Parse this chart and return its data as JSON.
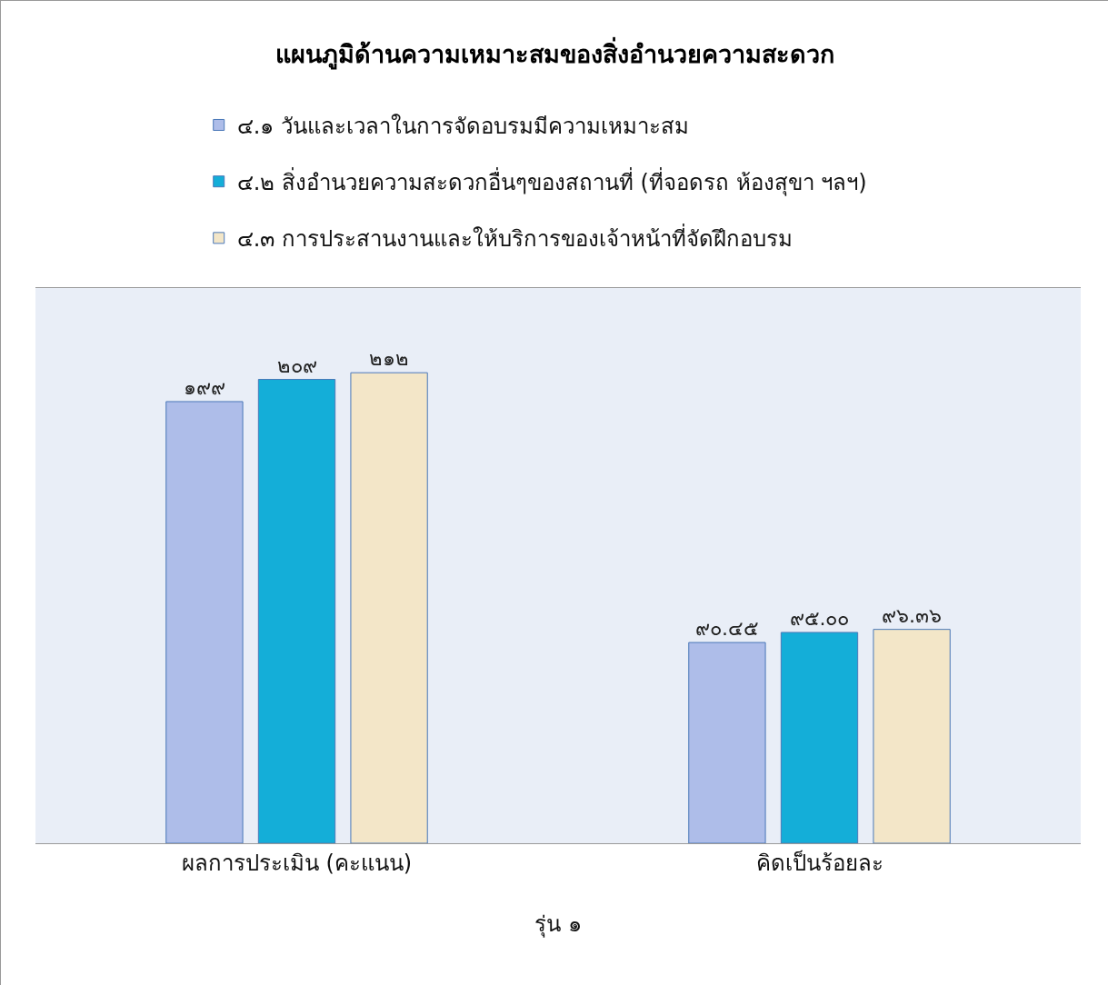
{
  "chart_data": {
    "type": "bar",
    "title": "แผนภูมิด้านความเหมาะสมของสิ่งอำนวยความสะดวก",
    "xlabel": "รุ่น ๑",
    "categories": [
      "ผลการประเมิน (คะแนน)",
      "คิดเป็นร้อยละ"
    ],
    "series": [
      {
        "name": "๔.๑ วันและเวลาในการจัดอบรมมีความเหมาะสม",
        "color": "#aebde9",
        "values": [
          199,
          90.45
        ],
        "value_labels": [
          "๑๙๙",
          "๙๐.๔๕"
        ]
      },
      {
        "name": "๔.๒ สิ่งอำนวยความสะดวกอื่นๆของสถานที่ (ที่จอดรถ ห้องสุขา ฯลฯ)",
        "color": "#14aed8",
        "values": [
          209,
          95.0
        ],
        "value_labels": [
          "๒๐๙",
          "๙๕.๐๐"
        ]
      },
      {
        "name": "๔.๓ การประสานงานและให้บริการของเจ้าหน้าที่จัดฝึกอบรม",
        "color": "#f3e6c8",
        "values": [
          212,
          96.36
        ],
        "value_labels": [
          "๒๑๒",
          "๙๖.๓๖"
        ]
      }
    ],
    "legend": "top",
    "grid": false
  }
}
